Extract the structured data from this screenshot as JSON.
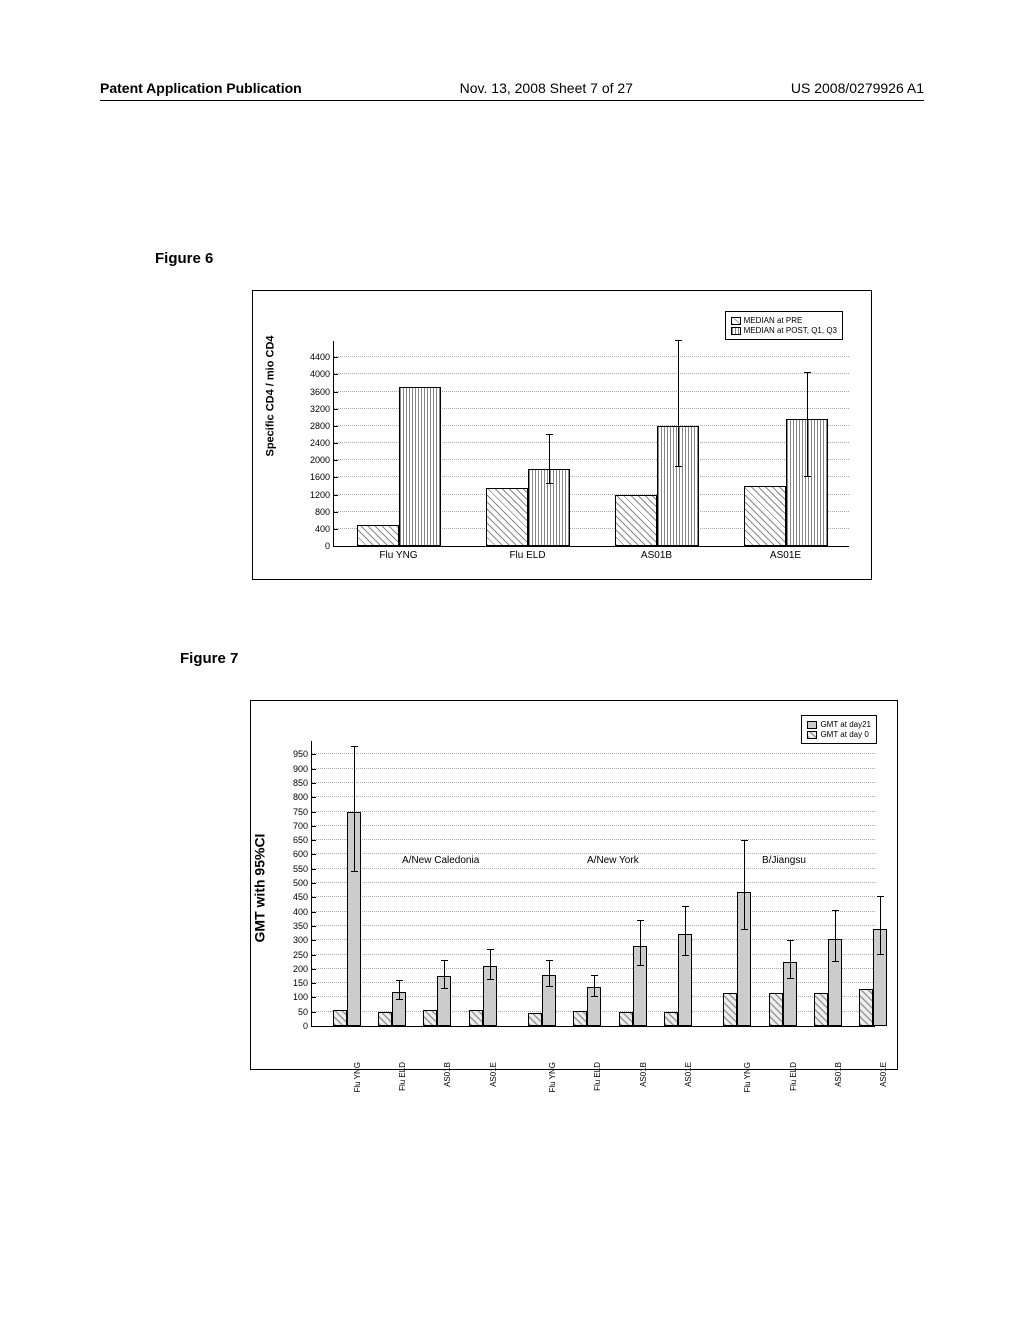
{
  "header": {
    "left": "Patent Application Publication",
    "center": "Nov. 13, 2008  Sheet 7 of 27",
    "right": "US 2008/0279926 A1"
  },
  "figure6": {
    "label": "Figure 6",
    "type": "bar",
    "ylabel": "Specific CD4 / mio CD4",
    "ylim": [
      0,
      4800
    ],
    "ytick_step": 400,
    "categories": [
      "Flu YNG",
      "Flu ELD",
      "AS01B",
      "AS01E"
    ],
    "series": [
      {
        "name": "MEDIAN at PRE",
        "pattern": "hatch-diag",
        "values": [
          500,
          1350,
          1200,
          1400
        ]
      },
      {
        "name": "MEDIAN at POST, Q1, Q3",
        "pattern": "hatch-vert",
        "values": [
          3700,
          1800,
          2800,
          2950
        ],
        "err_low": [
          null,
          1450,
          1850,
          1600
        ],
        "err_high": [
          null,
          2600,
          4800,
          4050
        ]
      }
    ],
    "legend": [
      "MEDIAN at PRE",
      "MEDIAN at POST, Q1, Q3"
    ],
    "grid_color": "#aaaaaa",
    "background": "#ffffff"
  },
  "figure7": {
    "label": "Figure 7",
    "type": "bar",
    "ylabel": "GMT with 95%CI",
    "ylim": [
      0,
      1000
    ],
    "ytick_step": 50,
    "sections": [
      {
        "title": "A/New Caledonia",
        "x": 90
      },
      {
        "title": "A/New York",
        "x": 275
      },
      {
        "title": "B/Jiangsu",
        "x": 450
      }
    ],
    "categories": [
      "Flu YNG",
      "Flu ELD",
      "AS01B",
      "AS01E",
      "Flu YNG",
      "Flu ELD",
      "AS01B",
      "AS01E",
      "Flu YNG",
      "Flu ELD",
      "AS01B",
      "AS01E"
    ],
    "series": [
      {
        "name": "GMT at day 0",
        "pattern": "hatch-diag2",
        "values": [
          55,
          48,
          55,
          55,
          45,
          52,
          50,
          50,
          115,
          115,
          115,
          130
        ]
      },
      {
        "name": "GMT at day21",
        "pattern": "solid-gray",
        "values": [
          750,
          120,
          175,
          210,
          180,
          135,
          280,
          320,
          470,
          225,
          305,
          340
        ],
        "err_low": [
          540,
          90,
          130,
          160,
          135,
          100,
          210,
          245,
          335,
          165,
          225,
          250
        ],
        "err_high": [
          980,
          160,
          230,
          270,
          230,
          180,
          370,
          420,
          650,
          300,
          405,
          455
        ]
      }
    ],
    "legend": [
      "GMT at day21",
      "GMT at day 0"
    ],
    "grid_color": "#aaaaaa",
    "background": "#ffffff"
  }
}
